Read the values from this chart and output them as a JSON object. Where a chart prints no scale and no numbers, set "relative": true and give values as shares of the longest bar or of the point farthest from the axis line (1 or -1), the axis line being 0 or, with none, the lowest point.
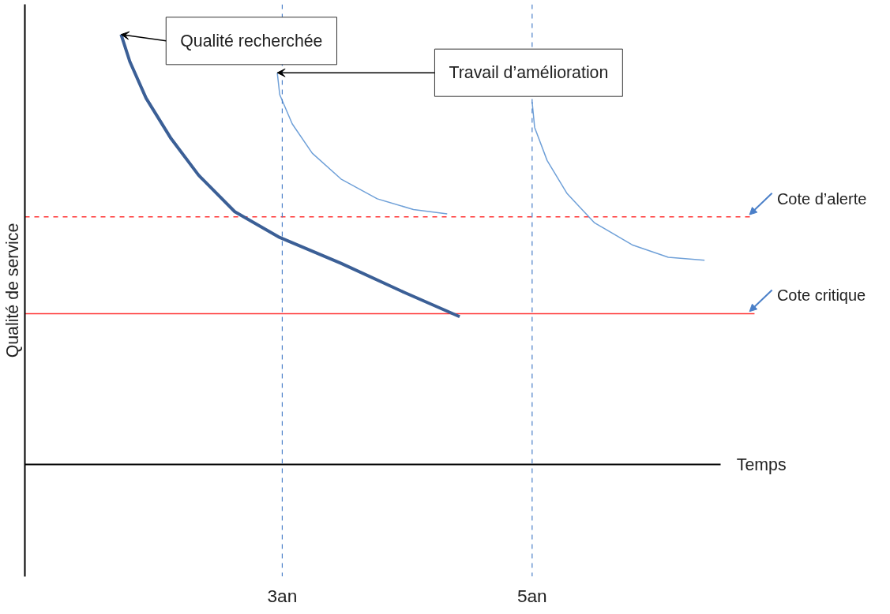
{
  "chart_data": {
    "type": "line",
    "relative": true,
    "xlabel": "Temps",
    "ylabel": "Qualité de service",
    "xlim": [
      0.94,
      6.51
    ],
    "xticks": [
      {
        "value": 3,
        "label": "3an"
      },
      {
        "value": 5,
        "label": "5an"
      }
    ],
    "grid": false,
    "marker": "none",
    "series": [
      {
        "color": "#3b5f96",
        "x": [
          1.71,
          1.78,
          1.91,
          2.11,
          2.33,
          2.62,
          2.98,
          3.47,
          3.98,
          4.42
        ],
        "values": [
          1.0,
          0.937,
          0.852,
          0.758,
          0.673,
          0.588,
          0.528,
          0.468,
          0.4,
          0.344
        ]
      },
      {
        "color": "#6fa0d8",
        "x": [
          2.96,
          2.98,
          3.08,
          3.24,
          3.47,
          3.76,
          4.05,
          4.32
        ],
        "values": [
          0.911,
          0.86,
          0.792,
          0.724,
          0.664,
          0.618,
          0.593,
          0.583
        ]
      },
      {
        "color": "#6fa0d8",
        "x": [
          5.0,
          5.02,
          5.12,
          5.28,
          5.5,
          5.8,
          6.09,
          6.38
        ],
        "values": [
          0.843,
          0.784,
          0.707,
          0.63,
          0.562,
          0.511,
          0.482,
          0.475
        ]
      }
    ],
    "ref_lines": [
      {
        "axis": "y",
        "value": 0.576,
        "label": "Cote d’alerte",
        "color": "#ff3333",
        "line_style": "dashed"
      },
      {
        "axis": "y",
        "value": 0.351,
        "label": "Cote critique",
        "color": "#ff3333",
        "line_style": "solid"
      },
      {
        "axis": "x",
        "value": 3,
        "label": null,
        "color": "#4a7fc8",
        "line_style": "dashed"
      },
      {
        "axis": "x",
        "value": 5,
        "label": null,
        "color": "#4a7fc8",
        "line_style": "dashed"
      }
    ],
    "annotations": [
      {
        "text": "Qualité recherchée",
        "x": 1.71,
        "y": 1.0
      },
      {
        "text": "Travail d’amélioration",
        "x": 2.96,
        "y": 0.911
      }
    ]
  }
}
